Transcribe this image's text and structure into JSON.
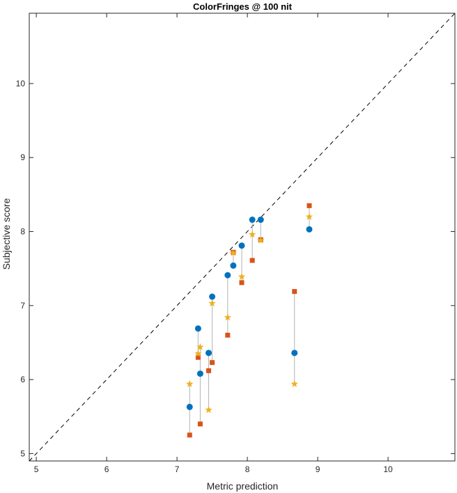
{
  "chart_data": {
    "type": "scatter",
    "title": "ColorFringes @ 100 nit",
    "xlabel": "Metric prediction",
    "ylabel": "Subjective score",
    "xlim": [
      4.9,
      10.95
    ],
    "ylim": [
      4.9,
      10.95
    ],
    "xticks": [
      "5",
      "6",
      "7",
      "8",
      "9",
      "10"
    ],
    "yticks": [
      "5",
      "6",
      "7",
      "8",
      "9",
      "10"
    ],
    "grid": false,
    "box": true,
    "identity_line": {
      "style": "dashed",
      "color": "#000000"
    },
    "connector_color": "#b3b3b3",
    "series": [
      {
        "marker": "circle",
        "color": "#0072bd",
        "points": [
          [
            7.18,
            5.63
          ],
          [
            7.3,
            6.69
          ],
          [
            7.33,
            6.08
          ],
          [
            7.45,
            6.36
          ],
          [
            7.5,
            7.12
          ],
          [
            7.72,
            7.41
          ],
          [
            7.8,
            7.54
          ],
          [
            7.92,
            7.81
          ],
          [
            8.07,
            8.16
          ],
          [
            8.19,
            8.16
          ],
          [
            8.67,
            6.36
          ],
          [
            8.88,
            8.03
          ]
        ]
      },
      {
        "marker": "square",
        "color": "#d95319",
        "points": [
          [
            7.18,
            5.25
          ],
          [
            7.3,
            6.3
          ],
          [
            7.33,
            5.4
          ],
          [
            7.45,
            6.12
          ],
          [
            7.5,
            6.23
          ],
          [
            7.72,
            6.6
          ],
          [
            7.8,
            7.72
          ],
          [
            7.92,
            7.31
          ],
          [
            8.07,
            7.61
          ],
          [
            8.19,
            7.89
          ],
          [
            8.67,
            7.19
          ],
          [
            8.88,
            8.35
          ]
        ]
      },
      {
        "marker": "star",
        "color": "#edb120",
        "points": [
          [
            7.18,
            5.94
          ],
          [
            7.3,
            6.35
          ],
          [
            7.33,
            6.44
          ],
          [
            7.45,
            5.59
          ],
          [
            7.5,
            7.03
          ],
          [
            7.72,
            6.84
          ],
          [
            7.8,
            7.71
          ],
          [
            7.92,
            7.39
          ],
          [
            8.07,
            7.96
          ],
          [
            8.19,
            7.88
          ],
          [
            8.67,
            5.94
          ],
          [
            8.88,
            8.2
          ]
        ]
      }
    ]
  }
}
